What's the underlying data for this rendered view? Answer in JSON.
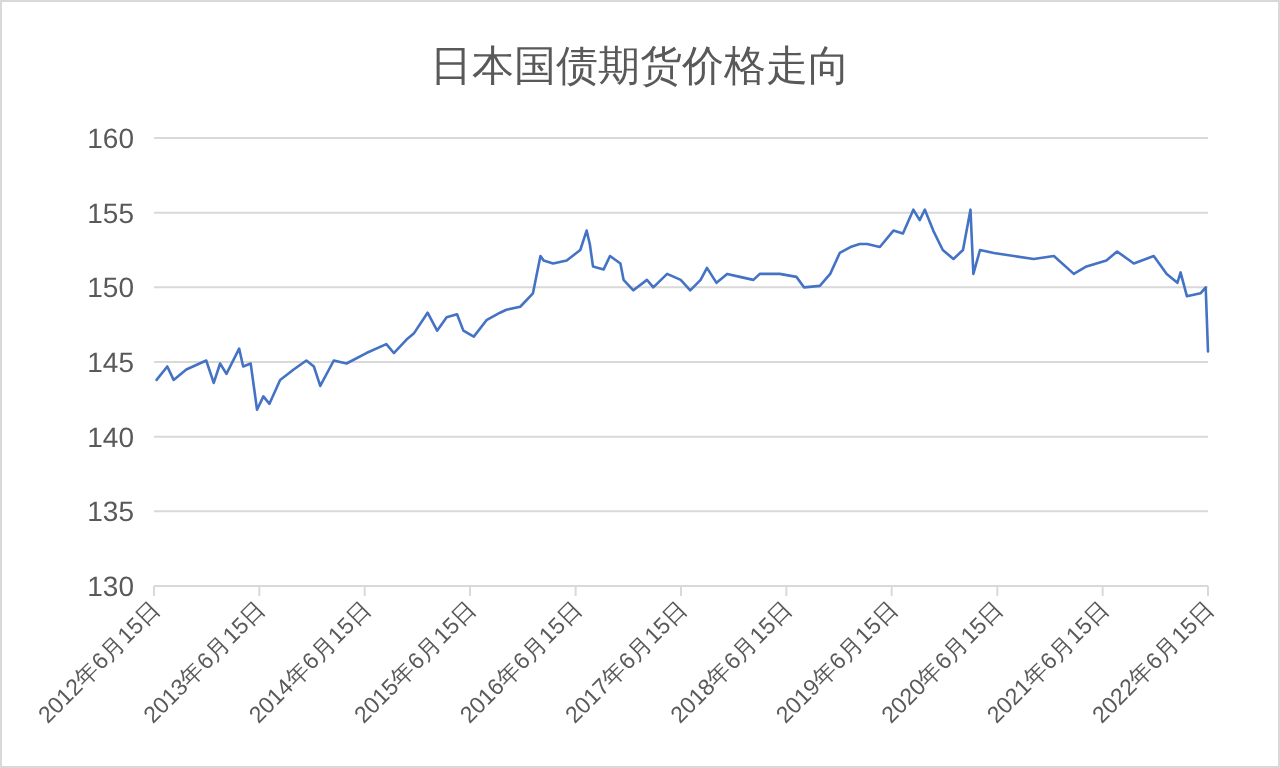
{
  "chart_data": {
    "type": "line",
    "title": "日本国债期货价格走向",
    "x": [
      "2012-06-24",
      "2012-07-31",
      "2012-08-22",
      "2012-10-05",
      "2012-12-13",
      "2013-01-08",
      "2013-01-30",
      "2013-02-21",
      "2013-04-06",
      "2013-04-20",
      "2013-05-16",
      "2013-06-07",
      "2013-06-29",
      "2013-07-20",
      "2013-08-26",
      "2013-10-12",
      "2013-11-25",
      "2013-12-21",
      "2014-01-12",
      "2014-02-28",
      "2014-04-13",
      "2014-06-21",
      "2014-08-29",
      "2014-09-24",
      "2014-11-07",
      "2014-12-02",
      "2015-01-19",
      "2015-02-21",
      "2015-03-26",
      "2015-05-01",
      "2015-05-23",
      "2015-06-28",
      "2015-08-11",
      "2015-09-27",
      "2015-10-19",
      "2015-12-06",
      "2016-01-19",
      "2016-02-14",
      "2016-02-25",
      "2016-03-29",
      "2016-05-15",
      "2016-07-01",
      "2016-07-23",
      "2016-08-03",
      "2016-08-14",
      "2016-09-20",
      "2016-10-12",
      "2016-11-17",
      "2016-11-28",
      "2017-01-01",
      "2017-02-17",
      "2017-03-11",
      "2017-04-28",
      "2017-06-14",
      "2017-07-17",
      "2017-08-22",
      "2017-09-13",
      "2017-10-16",
      "2017-11-22",
      "2018-01-05",
      "2018-02-21",
      "2018-03-15",
      "2018-05-23",
      "2018-07-20",
      "2018-08-15",
      "2018-10-09",
      "2018-11-14",
      "2018-12-17",
      "2019-01-23",
      "2019-02-24",
      "2019-03-22",
      "2019-05-05",
      "2019-06-21",
      "2019-07-24",
      "2019-08-29",
      "2019-09-20",
      "2019-10-08",
      "2019-11-06",
      "2019-12-09",
      "2020-01-15",
      "2020-02-17",
      "2020-03-14",
      "2020-03-24",
      "2020-04-16",
      "2020-06-03",
      "2020-08-11",
      "2020-10-19",
      "2020-12-28",
      "2021-03-07",
      "2021-04-20",
      "2021-06-28",
      "2021-08-04",
      "2021-10-01",
      "2021-12-09",
      "2022-01-23",
      "2022-03-01",
      "2022-03-12",
      "2022-04-03",
      "2022-05-20",
      "2022-06-07",
      "2022-06-15"
    ],
    "series": [
      {
        "color": "#4472c4",
        "values": [
          143.8,
          144.7,
          143.8,
          144.5,
          145.1,
          143.6,
          144.9,
          144.2,
          145.9,
          144.7,
          144.9,
          141.8,
          142.7,
          142.2,
          143.8,
          144.5,
          145.1,
          144.7,
          143.4,
          145.1,
          144.9,
          145.6,
          146.2,
          145.6,
          146.5,
          146.9,
          148.3,
          147.1,
          148.0,
          148.2,
          147.1,
          146.7,
          147.8,
          148.3,
          148.5,
          148.7,
          149.6,
          152.1,
          151.8,
          151.6,
          151.8,
          152.5,
          153.8,
          152.9,
          151.4,
          151.2,
          152.1,
          151.6,
          150.5,
          149.8,
          150.5,
          150.0,
          150.9,
          150.5,
          149.8,
          150.5,
          151.3,
          150.3,
          150.9,
          150.7,
          150.5,
          150.9,
          150.9,
          150.7,
          150.0,
          150.1,
          150.9,
          152.3,
          152.7,
          152.9,
          152.9,
          152.7,
          153.8,
          153.6,
          155.2,
          154.5,
          155.2,
          153.8,
          152.5,
          151.9,
          152.5,
          155.2,
          150.9,
          152.5,
          152.3,
          152.1,
          151.9,
          152.1,
          150.9,
          151.4,
          151.8,
          152.4,
          151.6,
          152.1,
          150.9,
          150.3,
          151.0,
          149.4,
          149.6,
          150.0,
          145.7
        ]
      }
    ],
    "xlim": [
      "2012-06-15",
      "2022-06-15"
    ],
    "xticks": [
      {
        "value": "2012-06-15",
        "label": "2012年6月15日"
      },
      {
        "value": "2013-06-15",
        "label": "2013年6月15日"
      },
      {
        "value": "2014-06-15",
        "label": "2014年6月15日"
      },
      {
        "value": "2015-06-15",
        "label": "2015年6月15日"
      },
      {
        "value": "2016-06-15",
        "label": "2016年6月15日"
      },
      {
        "value": "2017-06-15",
        "label": "2017年6月15日"
      },
      {
        "value": "2018-06-15",
        "label": "2018年6月15日"
      },
      {
        "value": "2019-06-15",
        "label": "2019年6月15日"
      },
      {
        "value": "2020-06-15",
        "label": "2020年6月15日"
      },
      {
        "value": "2021-06-15",
        "label": "2021年6月15日"
      },
      {
        "value": "2022-06-15",
        "label": "2022年6月15日"
      }
    ],
    "ylim": [
      130,
      160
    ],
    "yticks": [
      130,
      135,
      140,
      145,
      150,
      155,
      160
    ],
    "grid": "y"
  }
}
